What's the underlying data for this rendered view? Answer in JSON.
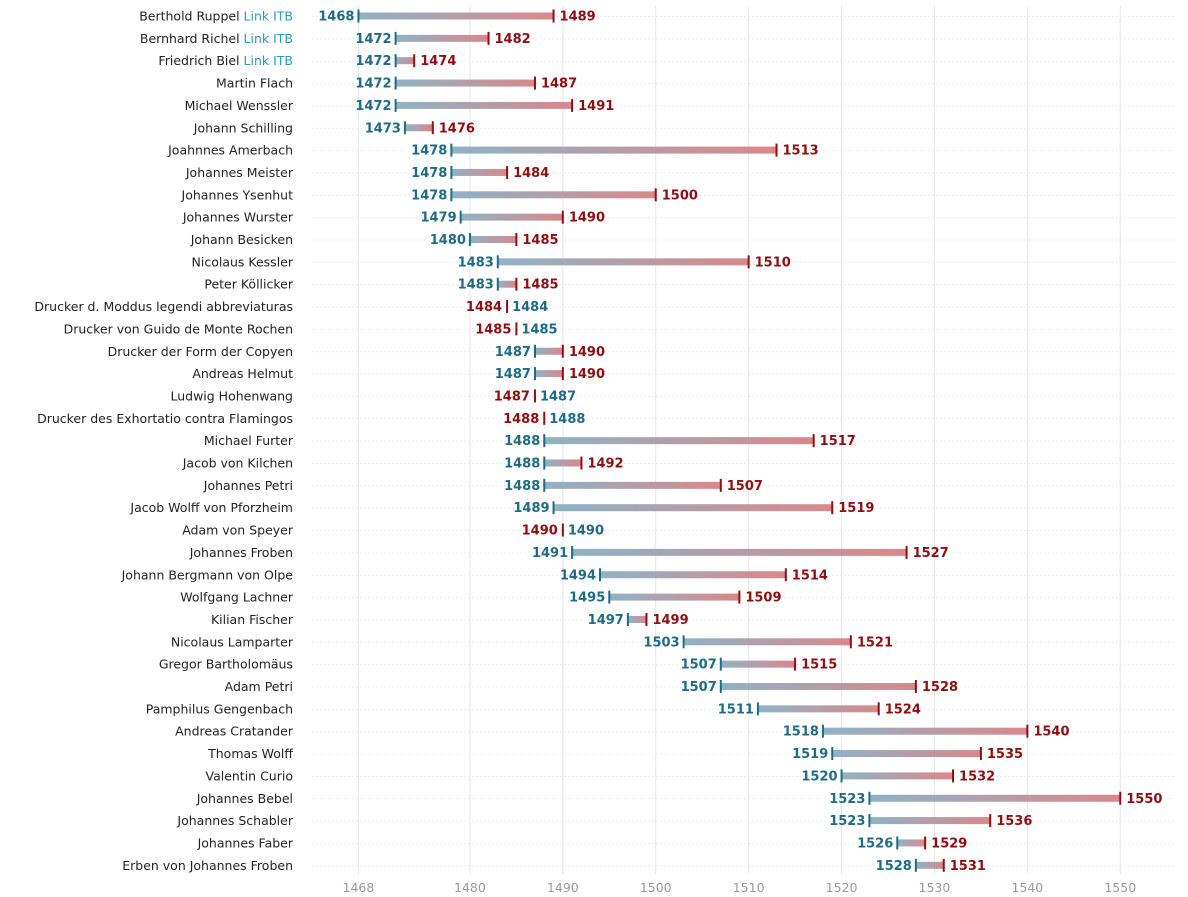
{
  "colors": {
    "start": "#1f6a85",
    "end": "#8f0e12",
    "bar_start": "#8fb3c6",
    "bar_end": "#d9888b",
    "link": "#2b9ac4",
    "grid": "#e6e6e6",
    "row_line": "#ececec",
    "tick_text": "#9a9a9a"
  },
  "chart_data": {
    "type": "dumbbell",
    "title": "",
    "xlabel": "",
    "ylabel": "",
    "xlim": [
      1463,
      1556
    ],
    "x_ticks": [
      1468,
      1480,
      1490,
      1500,
      1510,
      1520,
      1530,
      1540,
      1550
    ],
    "grid": true,
    "rows": [
      {
        "name": "Berthold Ruppel",
        "link": "Link ITB",
        "start": 1468,
        "end": 1489
      },
      {
        "name": "Bernhard Richel",
        "link": "Link ITB",
        "start": 1472,
        "end": 1482
      },
      {
        "name": "Friedrich Biel",
        "link": "Link ITB",
        "start": 1472,
        "end": 1474
      },
      {
        "name": "Martin Flach",
        "start": 1472,
        "end": 1487
      },
      {
        "name": "Michael Wenssler",
        "start": 1472,
        "end": 1491
      },
      {
        "name": "Johann Schilling",
        "start": 1473,
        "end": 1476
      },
      {
        "name": "Joahnnes Amerbach",
        "start": 1478,
        "end": 1513
      },
      {
        "name": "Johannes Meister",
        "start": 1478,
        "end": 1484
      },
      {
        "name": "Johannes Ysenhut",
        "start": 1478,
        "end": 1500
      },
      {
        "name": "Johannes Wurster",
        "start": 1479,
        "end": 1490
      },
      {
        "name": "Johann Besicken",
        "start": 1480,
        "end": 1485
      },
      {
        "name": "Nicolaus Kessler",
        "start": 1483,
        "end": 1510
      },
      {
        "name": "Peter Köllicker",
        "start": 1483,
        "end": 1485
      },
      {
        "name": "Drucker d. Moddus legendi abbreviaturas",
        "start": 1484,
        "end": 1484
      },
      {
        "name": "Drucker von Guido de Monte Rochen",
        "start": 1485,
        "end": 1485
      },
      {
        "name": "Drucker der Form der Copyen",
        "start": 1487,
        "end": 1490
      },
      {
        "name": "Andreas Helmut",
        "start": 1487,
        "end": 1490
      },
      {
        "name": "Ludwig Hohenwang",
        "start": 1487,
        "end": 1487
      },
      {
        "name": "Drucker des Exhortatio contra Flamingos",
        "start": 1488,
        "end": 1488
      },
      {
        "name": "Michael Furter",
        "start": 1488,
        "end": 1517
      },
      {
        "name": "Jacob von Kilchen",
        "start": 1488,
        "end": 1492
      },
      {
        "name": "Johannes Petri",
        "start": 1488,
        "end": 1507
      },
      {
        "name": "Jacob Wolff von Pforzheim",
        "start": 1489,
        "end": 1519
      },
      {
        "name": "Adam von Speyer",
        "start": 1490,
        "end": 1490
      },
      {
        "name": "Johannes Froben",
        "start": 1491,
        "end": 1527
      },
      {
        "name": "Johann Bergmann von Olpe",
        "start": 1494,
        "end": 1514
      },
      {
        "name": "Wolfgang Lachner",
        "start": 1495,
        "end": 1509
      },
      {
        "name": "Kilian Fischer",
        "start": 1497,
        "end": 1499
      },
      {
        "name": "Nicolaus Lamparter",
        "start": 1503,
        "end": 1521
      },
      {
        "name": "Gregor Bartholomäus",
        "start": 1507,
        "end": 1515
      },
      {
        "name": "Adam Petri",
        "start": 1507,
        "end": 1528
      },
      {
        "name": "Pamphilus Gengenbach",
        "start": 1511,
        "end": 1524
      },
      {
        "name": "Andreas Cratander",
        "start": 1518,
        "end": 1540
      },
      {
        "name": "Thomas Wolff",
        "start": 1519,
        "end": 1535
      },
      {
        "name": "Valentin Curio",
        "start": 1520,
        "end": 1532
      },
      {
        "name": "Johannes Bebel",
        "start": 1523,
        "end": 1550
      },
      {
        "name": "Johannes Schabler",
        "start": 1523,
        "end": 1536
      },
      {
        "name": "Johannes Faber",
        "start": 1526,
        "end": 1529
      },
      {
        "name": "Erben von Johannes Froben",
        "start": 1528,
        "end": 1531
      }
    ]
  }
}
